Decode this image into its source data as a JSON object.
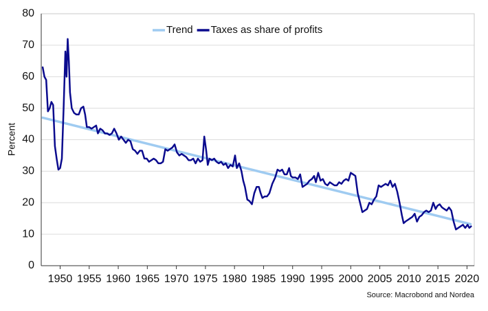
{
  "chart_data": {
    "type": "line",
    "y_label": "Percent",
    "source": "Source: Macrobond and Nordea",
    "legend": "top",
    "grid": true,
    "xlim": [
      1946.75,
      2021.25
    ],
    "xticks": [
      1950,
      1955,
      1960,
      1965,
      1970,
      1975,
      1980,
      1985,
      1990,
      1995,
      2000,
      2005,
      2010,
      2015,
      2020
    ],
    "ylim": [
      0,
      80
    ],
    "yticks": [
      0,
      10,
      20,
      30,
      40,
      50,
      60,
      70,
      80
    ],
    "series": [
      {
        "name": "Trend",
        "color": "#9fcbf1",
        "width": 3.5,
        "x": [
          1947.0,
          2020.6
        ],
        "values": [
          47,
          13.2
        ]
      },
      {
        "name": "Taxes as share of profits",
        "color": "#0b0b8e",
        "width": 2.5,
        "x": [
          1947.0,
          1947.3,
          1947.6,
          1947.9,
          1948.2,
          1948.5,
          1948.8,
          1949.1,
          1949.4,
          1949.7,
          1950.0,
          1950.3,
          1950.6,
          1950.9,
          1951.1,
          1951.3,
          1951.5,
          1951.7,
          1952.0,
          1952.4,
          1952.8,
          1953.2,
          1953.6,
          1954.0,
          1954.3,
          1954.6,
          1955.0,
          1955.4,
          1955.8,
          1956.2,
          1956.5,
          1956.9,
          1957.3,
          1957.7,
          1958.1,
          1958.5,
          1958.9,
          1959.3,
          1959.7,
          1960.1,
          1960.5,
          1960.9,
          1961.3,
          1961.7,
          1962.1,
          1962.5,
          1962.9,
          1963.3,
          1963.7,
          1964.1,
          1964.5,
          1964.9,
          1965.3,
          1965.7,
          1966.1,
          1966.5,
          1966.9,
          1967.3,
          1967.7,
          1968.1,
          1968.5,
          1968.9,
          1969.3,
          1969.7,
          1970.1,
          1970.5,
          1970.9,
          1971.3,
          1971.7,
          1972.1,
          1972.5,
          1972.9,
          1973.3,
          1973.7,
          1974.1,
          1974.5,
          1974.8,
          1975.1,
          1975.4,
          1975.7,
          1976.1,
          1976.5,
          1976.9,
          1977.3,
          1977.7,
          1978.1,
          1978.5,
          1978.9,
          1979.3,
          1979.7,
          1980.1,
          1980.4,
          1980.8,
          1981.2,
          1981.5,
          1981.8,
          1982.2,
          1982.6,
          1983.0,
          1983.4,
          1983.8,
          1984.2,
          1984.5,
          1984.8,
          1985.2,
          1985.6,
          1986.0,
          1986.5,
          1987.0,
          1987.4,
          1987.8,
          1988.2,
          1988.6,
          1989.0,
          1989.4,
          1989.7,
          1990.0,
          1990.5,
          1990.9,
          1991.3,
          1991.7,
          1992.1,
          1992.5,
          1992.9,
          1993.3,
          1993.7,
          1994.0,
          1994.4,
          1994.8,
          1995.2,
          1995.6,
          1996.0,
          1996.4,
          1996.8,
          1997.2,
          1997.6,
          1998.0,
          1998.4,
          1998.8,
          1999.2,
          1999.6,
          2000.0,
          2000.4,
          2000.8,
          2001.2,
          2001.6,
          2002.0,
          2002.4,
          2002.8,
          2003.2,
          2003.6,
          2004.0,
          2004.4,
          2004.8,
          2005.2,
          2005.6,
          2006.0,
          2006.4,
          2006.8,
          2007.2,
          2007.6,
          2008.0,
          2008.4,
          2008.8,
          2009.1,
          2009.4,
          2009.8,
          2010.2,
          2010.6,
          2011.0,
          2011.4,
          2011.8,
          2012.2,
          2012.6,
          2013.0,
          2013.4,
          2013.8,
          2014.2,
          2014.6,
          2014.9,
          2015.3,
          2015.7,
          2016.1,
          2016.5,
          2016.9,
          2017.3,
          2017.7,
          2018.1,
          2018.5,
          2018.9,
          2019.3,
          2019.7,
          2020.1,
          2020.4,
          2020.7
        ],
        "values": [
          63,
          60,
          59,
          49,
          50,
          52,
          51,
          38,
          34,
          30.5,
          31,
          34,
          50,
          68,
          60,
          72,
          65,
          55,
          50,
          48.5,
          48,
          48,
          50,
          50.5,
          48,
          44,
          44,
          43.5,
          44,
          44.5,
          42,
          43.5,
          43,
          42,
          42,
          41.5,
          42,
          43.5,
          42,
          40,
          41,
          40,
          39,
          40,
          39.5,
          37,
          36.5,
          35.5,
          36.5,
          36.5,
          34,
          34,
          33,
          33.5,
          34,
          33.5,
          32.5,
          32.5,
          33,
          37,
          36.5,
          37,
          37.5,
          38.5,
          36,
          35,
          35.5,
          35,
          34.5,
          33.5,
          33.5,
          34,
          32.5,
          34,
          33,
          33.5,
          41,
          37,
          32,
          34,
          33.5,
          34,
          33,
          32.5,
          33,
          32,
          32.5,
          31,
          32,
          31.5,
          35,
          31,
          32.5,
          30,
          27,
          25,
          21,
          20.5,
          19.5,
          23,
          25,
          25,
          23,
          21.5,
          22,
          22,
          23,
          26,
          28,
          30.5,
          30,
          30.5,
          29,
          29,
          31,
          28.5,
          28,
          28,
          27.5,
          29,
          25,
          25.5,
          26,
          27,
          27.5,
          28.5,
          26.5,
          29.5,
          27,
          27.5,
          26,
          25.5,
          26.5,
          26,
          25.5,
          25.5,
          26.5,
          26,
          27,
          27.5,
          27,
          29.5,
          29,
          28.5,
          23,
          20,
          17,
          17.5,
          18,
          20,
          19.5,
          21,
          22,
          25.5,
          25,
          25.5,
          26,
          25.5,
          27,
          25,
          26,
          23.5,
          20,
          16,
          13.5,
          14,
          14.5,
          15,
          15.5,
          16.5,
          14,
          15.5,
          16,
          17,
          17.5,
          17,
          17.5,
          20,
          18,
          19,
          19.5,
          18.5,
          18,
          17.5,
          18.5,
          17.5,
          14,
          11.5,
          12,
          12.5,
          13,
          12,
          13,
          12,
          12.5
        ]
      }
    ]
  }
}
